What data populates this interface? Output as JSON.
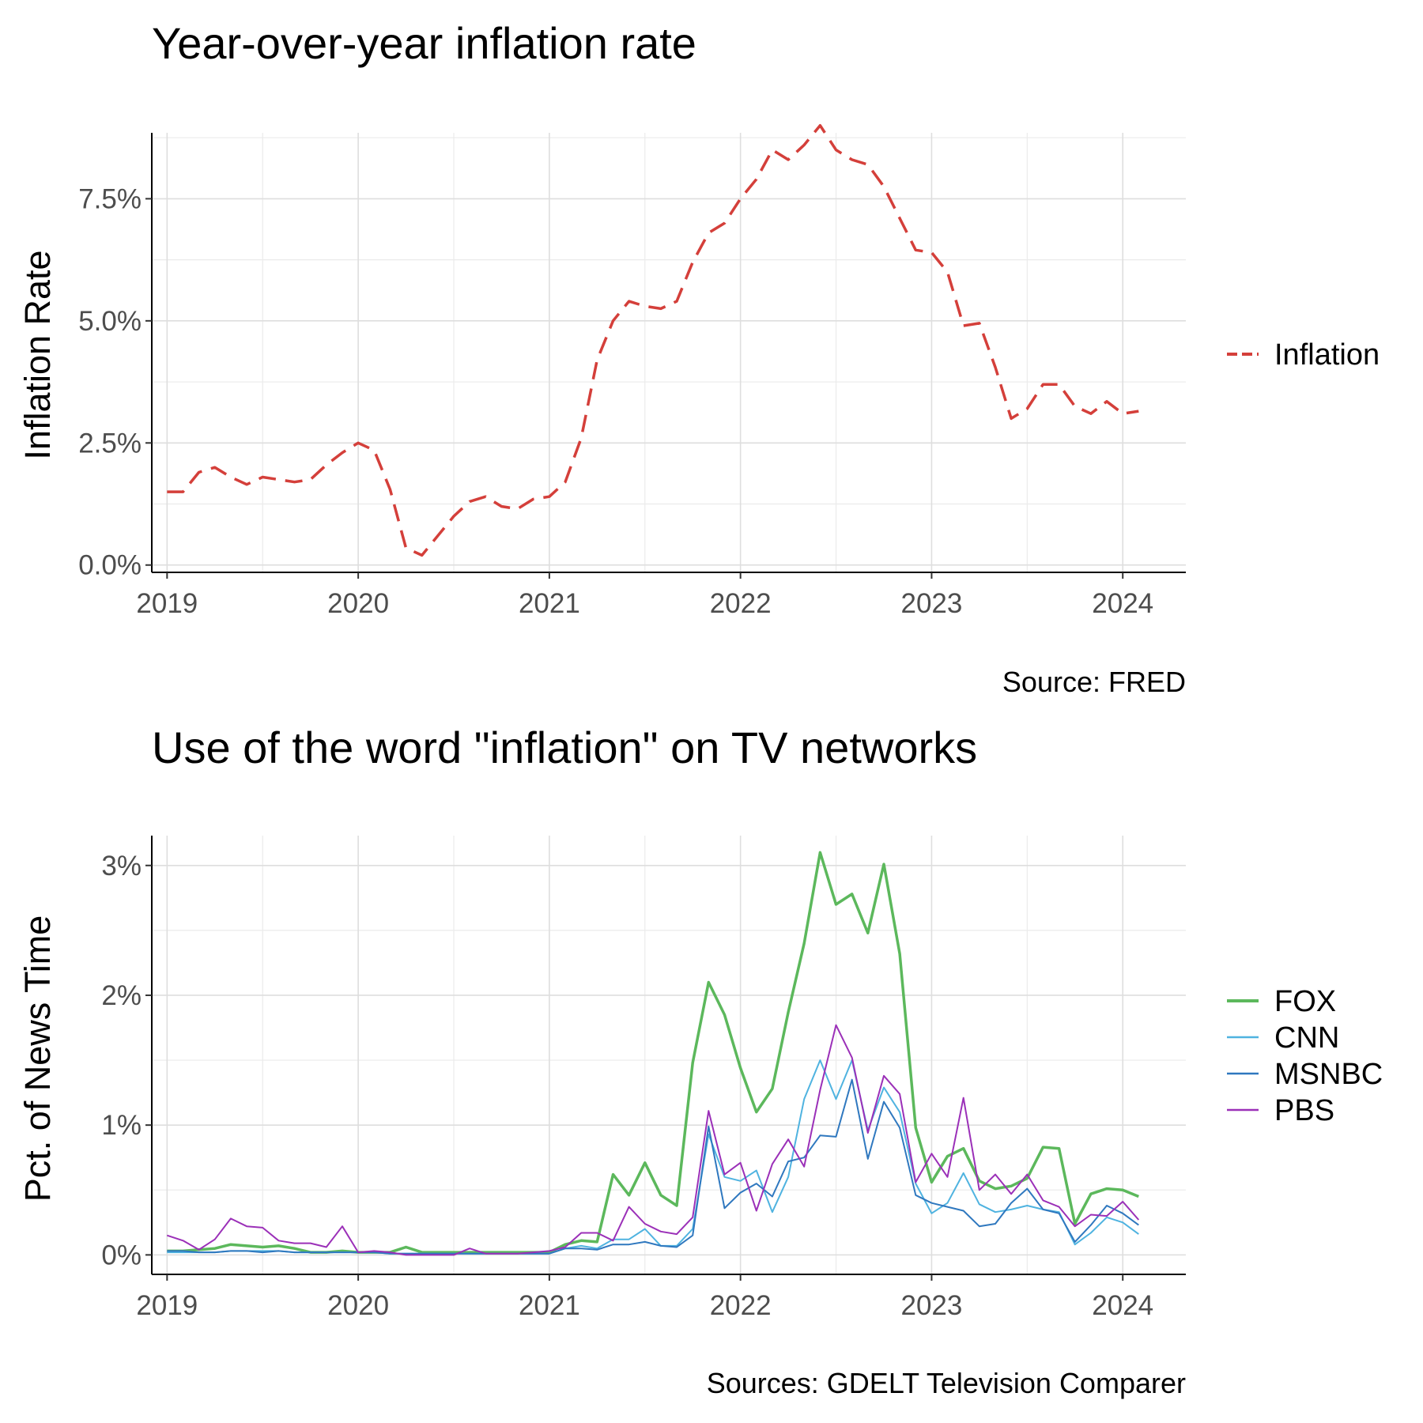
{
  "chart_data": [
    {
      "type": "line",
      "title": "Year-over-year inflation rate",
      "xlabel": "",
      "ylabel": "Inflation Rate",
      "caption": "Source: FRED",
      "xlim": [
        2018.92,
        2024.33
      ],
      "ylim": [
        -0.15,
        8.85
      ],
      "x_ticks": [
        2019,
        2020,
        2021,
        2022,
        2023,
        2024
      ],
      "x_tick_labels": [
        "2019",
        "2020",
        "2021",
        "2022",
        "2023",
        "2024"
      ],
      "y_ticks": [
        0,
        2.5,
        5.0,
        7.5
      ],
      "y_tick_labels": [
        "0.0%",
        "2.5%",
        "5.0%",
        "7.5%"
      ],
      "grid": true,
      "legend_position": "right",
      "series": [
        {
          "name": "Inflation",
          "color": "#d43f3a",
          "style": "dashed",
          "x_start": 2019.0,
          "x_step": 0.08333,
          "values": [
            1.5,
            1.5,
            1.9,
            2.0,
            1.8,
            1.65,
            1.8,
            1.75,
            1.7,
            1.75,
            2.05,
            2.3,
            2.5,
            2.35,
            1.55,
            0.35,
            0.2,
            0.6,
            1.0,
            1.3,
            1.4,
            1.2,
            1.15,
            1.35,
            1.4,
            1.7,
            2.6,
            4.2,
            5.0,
            5.4,
            5.3,
            5.25,
            5.4,
            6.2,
            6.8,
            7.0,
            7.5,
            7.9,
            8.5,
            8.3,
            8.6,
            9.0,
            8.5,
            8.3,
            8.2,
            7.75,
            7.1,
            6.45,
            6.4,
            6.0,
            4.9,
            4.95,
            4.05,
            3.0,
            3.2,
            3.7,
            3.7,
            3.25,
            3.1,
            3.35,
            3.1,
            3.15
          ]
        }
      ]
    },
    {
      "type": "line",
      "title": "Use of the word \"inflation\" on TV networks",
      "xlabel": "",
      "ylabel": "Pct. of News Time",
      "caption": "Sources: GDELT Television Comparer",
      "xlim": [
        2018.92,
        2024.33
      ],
      "ylim": [
        -0.15,
        3.23
      ],
      "x_ticks": [
        2019,
        2020,
        2021,
        2022,
        2023,
        2024
      ],
      "x_tick_labels": [
        "2019",
        "2020",
        "2021",
        "2022",
        "2023",
        "2024"
      ],
      "y_ticks": [
        0,
        1,
        2,
        3
      ],
      "y_tick_labels": [
        "0%",
        "1%",
        "2%",
        "3%"
      ],
      "grid": true,
      "legend_position": "right",
      "series": [
        {
          "name": "FOX",
          "color": "#5cb85c",
          "x_start": 2019.0,
          "x_step": 0.08333,
          "values": [
            0.03,
            0.03,
            0.04,
            0.05,
            0.08,
            0.07,
            0.06,
            0.07,
            0.05,
            0.02,
            0.02,
            0.03,
            0.02,
            0.02,
            0.02,
            0.06,
            0.02,
            0.02,
            0.02,
            0.02,
            0.02,
            0.02,
            0.02,
            0.02,
            0.02,
            0.08,
            0.11,
            0.1,
            0.62,
            0.46,
            0.71,
            0.46,
            0.38,
            1.48,
            2.1,
            1.85,
            1.44,
            1.1,
            1.28,
            1.87,
            2.4,
            3.1,
            2.7,
            2.78,
            2.48,
            3.01,
            2.32,
            0.98,
            0.56,
            0.76,
            0.82,
            0.57,
            0.51,
            0.53,
            0.59,
            0.83,
            0.82,
            0.24,
            0.47,
            0.51,
            0.5,
            0.45
          ]
        },
        {
          "name": "CNN",
          "color": "#4fb3e0",
          "x_start": 2019.0,
          "x_step": 0.08333,
          "values": [
            0.02,
            0.02,
            0.02,
            0.02,
            0.03,
            0.03,
            0.03,
            0.03,
            0.02,
            0.02,
            0.02,
            0.02,
            0.02,
            0.02,
            0.01,
            0.01,
            0.01,
            0.01,
            0.01,
            0.01,
            0.01,
            0.01,
            0.01,
            0.01,
            0.01,
            0.05,
            0.07,
            0.05,
            0.12,
            0.12,
            0.2,
            0.07,
            0.07,
            0.2,
            0.93,
            0.6,
            0.57,
            0.65,
            0.33,
            0.6,
            1.2,
            1.5,
            1.2,
            1.5,
            0.96,
            1.29,
            1.1,
            0.55,
            0.32,
            0.4,
            0.63,
            0.39,
            0.33,
            0.35,
            0.38,
            0.35,
            0.33,
            0.08,
            0.17,
            0.29,
            0.25,
            0.16
          ]
        },
        {
          "name": "MSNBC",
          "color": "#2f78bf",
          "x_start": 2019.0,
          "x_step": 0.08333,
          "values": [
            0.03,
            0.03,
            0.02,
            0.02,
            0.03,
            0.03,
            0.02,
            0.03,
            0.02,
            0.02,
            0.02,
            0.02,
            0.02,
            0.02,
            0.01,
            0.01,
            0.01,
            0.01,
            0.01,
            0.01,
            0.01,
            0.01,
            0.01,
            0.01,
            0.01,
            0.05,
            0.05,
            0.04,
            0.08,
            0.08,
            0.1,
            0.07,
            0.06,
            0.15,
            0.99,
            0.36,
            0.48,
            0.55,
            0.45,
            0.72,
            0.75,
            0.92,
            0.91,
            1.35,
            0.74,
            1.18,
            0.98,
            0.46,
            0.4,
            0.37,
            0.34,
            0.22,
            0.24,
            0.4,
            0.51,
            0.35,
            0.32,
            0.1,
            0.23,
            0.38,
            0.32,
            0.23
          ]
        },
        {
          "name": "PBS",
          "color": "#9b30b8",
          "x_start": 2019.0,
          "x_step": 0.08333,
          "values": [
            0.15,
            0.11,
            0.04,
            0.12,
            0.28,
            0.22,
            0.21,
            0.11,
            0.09,
            0.09,
            0.06,
            0.22,
            0.02,
            0.03,
            0.02,
            0.0,
            0.0,
            0.0,
            0.0,
            0.05,
            0.01,
            0.01,
            0.01,
            0.02,
            0.03,
            0.06,
            0.17,
            0.17,
            0.11,
            0.37,
            0.24,
            0.18,
            0.16,
            0.29,
            1.11,
            0.62,
            0.71,
            0.34,
            0.7,
            0.89,
            0.68,
            1.27,
            1.77,
            1.52,
            0.94,
            1.38,
            1.24,
            0.56,
            0.78,
            0.6,
            1.21,
            0.5,
            0.62,
            0.47,
            0.62,
            0.42,
            0.37,
            0.22,
            0.31,
            0.3,
            0.41,
            0.27
          ]
        }
      ]
    }
  ]
}
